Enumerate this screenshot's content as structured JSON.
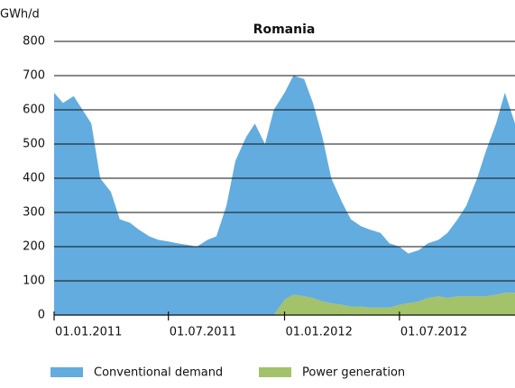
{
  "chart_data": {
    "type": "stacked_area",
    "title": "Romania",
    "y_label": "GWh/d",
    "x": [
      "2011-01-01",
      "2011-01-15",
      "2011-02-01",
      "2011-02-15",
      "2011-03-01",
      "2011-03-15",
      "2011-04-01",
      "2011-04-15",
      "2011-05-01",
      "2011-05-15",
      "2011-06-01",
      "2011-06-15",
      "2011-07-01",
      "2011-07-15",
      "2011-08-01",
      "2011-08-15",
      "2011-09-01",
      "2011-09-15",
      "2011-10-01",
      "2011-10-15",
      "2011-11-01",
      "2011-11-15",
      "2011-12-01",
      "2011-12-15",
      "2012-01-01",
      "2012-01-15",
      "2012-02-01",
      "2012-02-15",
      "2012-03-01",
      "2012-03-15",
      "2012-04-01",
      "2012-04-15",
      "2012-05-01",
      "2012-05-15",
      "2012-06-01",
      "2012-06-15",
      "2012-07-01",
      "2012-07-15",
      "2012-08-01",
      "2012-08-15",
      "2012-09-01",
      "2012-09-15",
      "2012-10-01",
      "2012-10-15",
      "2012-11-01",
      "2012-11-15",
      "2012-12-01",
      "2012-12-15",
      "2012-12-31"
    ],
    "series": [
      {
        "name": "Conventional demand",
        "color": "#62acdf",
        "values": [
          650,
          620,
          640,
          600,
          560,
          400,
          360,
          280,
          270,
          250,
          230,
          220,
          215,
          210,
          205,
          200,
          220,
          230,
          320,
          450,
          520,
          560,
          500,
          600,
          605,
          640,
          635,
          570,
          480,
          365,
          300,
          255,
          235,
          228,
          218,
          188,
          170,
          145,
          150,
          160,
          165,
          190,
          225,
          265,
          345,
          425,
          500,
          585,
          495
        ]
      },
      {
        "name": "Power generation",
        "color": "#a3c26a",
        "values": [
          0,
          0,
          0,
          0,
          0,
          0,
          0,
          0,
          0,
          0,
          0,
          0,
          0,
          0,
          0,
          0,
          0,
          0,
          0,
          0,
          0,
          0,
          0,
          0,
          45,
          60,
          55,
          50,
          40,
          35,
          30,
          25,
          25,
          22,
          22,
          22,
          30,
          35,
          40,
          50,
          55,
          50,
          55,
          55,
          55,
          55,
          60,
          65,
          65
        ]
      }
    ],
    "xlim": [
      "2011-01-01",
      "2012-12-31"
    ],
    "xticks": [
      {
        "value": "2011-01-01",
        "label": "01.01.2011"
      },
      {
        "value": "2011-07-01",
        "label": "01.07.2011"
      },
      {
        "value": "2012-01-01",
        "label": "01.01.2012"
      },
      {
        "value": "2012-07-01",
        "label": "01.07.2012"
      }
    ],
    "ylim": [
      0,
      800
    ],
    "yticks": [
      0,
      100,
      200,
      300,
      400,
      500,
      600,
      700,
      800
    ],
    "grid": true,
    "legend": "bottom"
  }
}
